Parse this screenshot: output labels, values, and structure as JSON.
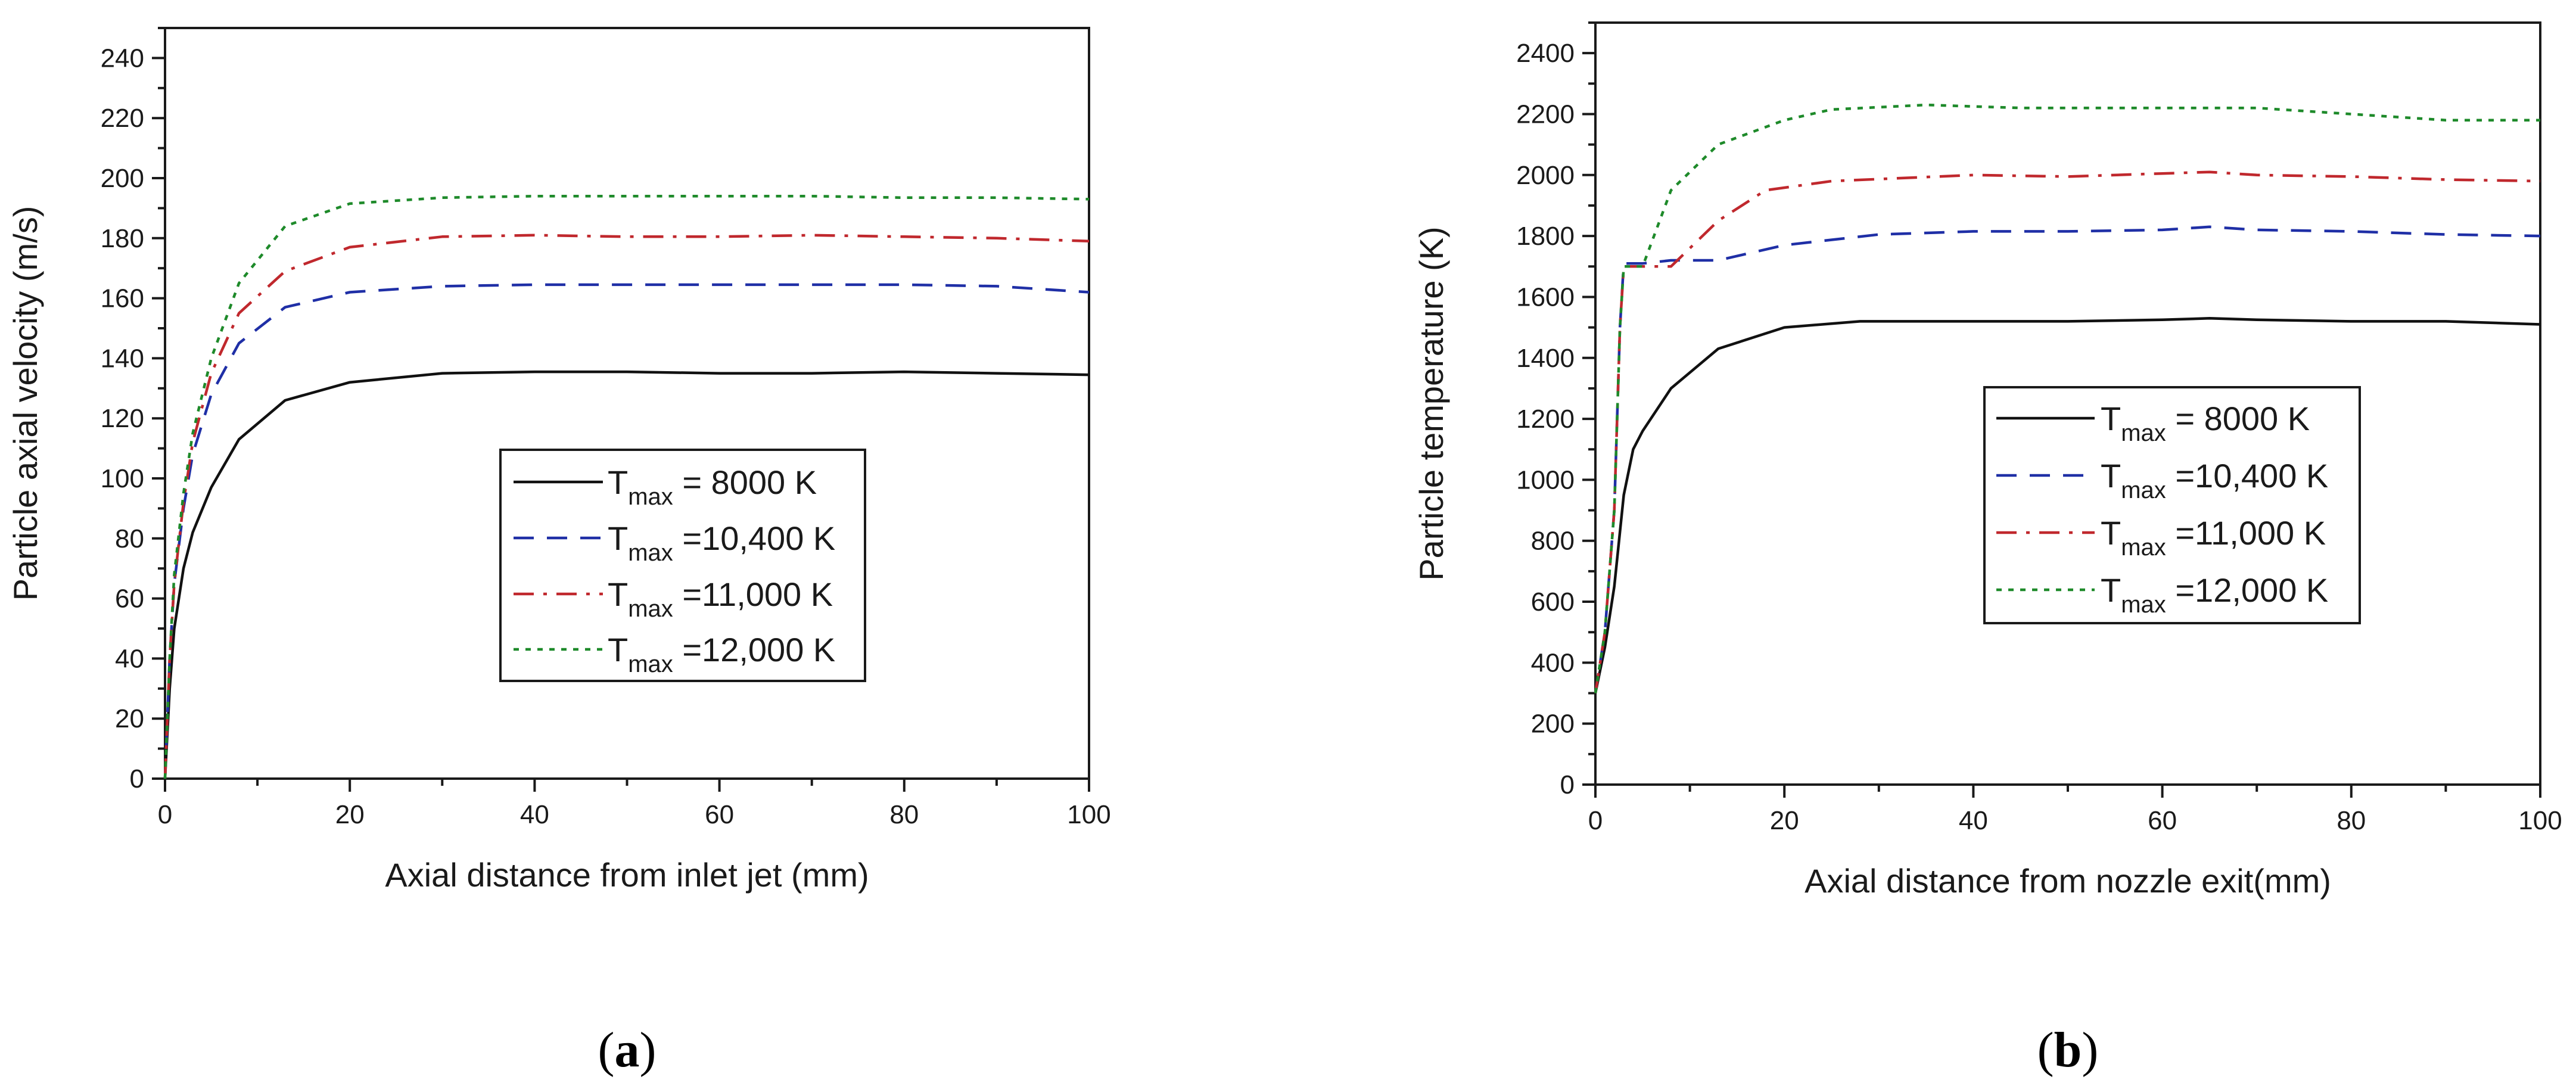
{
  "chart_data": [
    {
      "type": "line",
      "panel_label": "(a)",
      "panel_letter": "a",
      "xlabel": "Axial distance from inlet jet (mm)",
      "ylabel": "Particle axial velocity (m/s)",
      "xlim": [
        0,
        100
      ],
      "ylim": [
        0,
        250
      ],
      "xticks": [
        0,
        20,
        40,
        60,
        80,
        100
      ],
      "yticks": [
        0,
        20,
        40,
        60,
        80,
        100,
        120,
        140,
        160,
        180,
        200,
        220,
        240
      ],
      "legend_position": "center-right",
      "series": [
        {
          "name": "T_max = 8000 K",
          "legend_base": "T",
          "legend_sub": "max",
          "legend_rest": " = 8000 K",
          "color": "#111111",
          "style": "solid",
          "x": [
            0,
            0.5,
            1,
            2,
            3,
            5,
            8,
            13,
            20,
            30,
            40,
            50,
            60,
            70,
            80,
            90,
            100
          ],
          "y": [
            0,
            30,
            50,
            70,
            82,
            97,
            113,
            126,
            132,
            135,
            135.5,
            135.5,
            135,
            135,
            135.5,
            135,
            134.5
          ]
        },
        {
          "name": "T_max =10,400 K",
          "legend_base": "T",
          "legend_sub": "max",
          "legend_rest": " =10,400 K",
          "color": "#1f2fa6",
          "style": "dash",
          "x": [
            0,
            0.5,
            1,
            2,
            3,
            5,
            8,
            13,
            20,
            30,
            40,
            50,
            60,
            70,
            80,
            90,
            100
          ],
          "y": [
            0,
            40,
            65,
            90,
            108,
            128,
            145,
            157,
            162,
            164,
            164.5,
            164.5,
            164.5,
            164.5,
            164.5,
            164,
            162
          ]
        },
        {
          "name": "T_max =11,000 K",
          "legend_base": "T",
          "legend_sub": "max",
          "legend_rest": " =11,000 K",
          "color": "#c0282d",
          "style": "dashdot",
          "x": [
            0,
            0.5,
            1,
            2,
            3,
            5,
            8,
            13,
            20,
            30,
            40,
            50,
            60,
            70,
            80,
            90,
            100
          ],
          "y": [
            0,
            40,
            65,
            92,
            112,
            135,
            155,
            169,
            177,
            180.5,
            181,
            180.5,
            180.5,
            181,
            180.5,
            180,
            179
          ]
        },
        {
          "name": "T_max =12,000 K",
          "legend_base": "T",
          "legend_sub": "max",
          "legend_rest": " =12,000 K",
          "color": "#1e8a2a",
          "style": "dot",
          "x": [
            0,
            0.5,
            1,
            2,
            3,
            5,
            8,
            13,
            20,
            30,
            40,
            50,
            60,
            70,
            80,
            90,
            100
          ],
          "y": [
            0,
            40,
            68,
            95,
            115,
            140,
            165,
            184,
            191.5,
            193.5,
            194,
            194,
            194,
            194,
            193.5,
            193.5,
            193
          ]
        }
      ]
    },
    {
      "type": "line",
      "panel_label": "(b)",
      "panel_letter": "b",
      "xlabel": "Axial distance from nozzle exit(mm)",
      "ylabel": "Particle temperature (K)",
      "xlim": [
        0,
        100
      ],
      "ylim": [
        0,
        2500
      ],
      "xticks": [
        0,
        20,
        40,
        60,
        80,
        100
      ],
      "yticks": [
        0,
        200,
        400,
        600,
        800,
        1000,
        1200,
        1400,
        1600,
        1800,
        2000,
        2200,
        2400
      ],
      "legend_position": "center-right",
      "series": [
        {
          "name": "T_max = 8000 K",
          "legend_base": "T",
          "legend_sub": "max",
          "legend_rest": " = 8000 K",
          "color": "#111111",
          "style": "solid",
          "x": [
            0,
            1,
            2,
            3,
            4,
            5,
            8,
            13,
            20,
            28,
            40,
            50,
            60,
            65,
            70,
            80,
            90,
            100
          ],
          "y": [
            300,
            450,
            650,
            950,
            1100,
            1160,
            1300,
            1430,
            1500,
            1520,
            1520,
            1520,
            1525,
            1530,
            1525,
            1520,
            1520,
            1510
          ]
        },
        {
          "name": "T_max =10,400 K",
          "legend_base": "T",
          "legend_sub": "max",
          "legend_rest": " =10,400 K",
          "color": "#1f2fa6",
          "style": "dash",
          "x": [
            0,
            1,
            2,
            2.6,
            3,
            5,
            8,
            13,
            20,
            30,
            40,
            50,
            60,
            65,
            70,
            80,
            90,
            100
          ],
          "y": [
            300,
            500,
            900,
            1500,
            1710,
            1710,
            1720,
            1720,
            1770,
            1805,
            1815,
            1815,
            1820,
            1830,
            1820,
            1815,
            1805,
            1800
          ]
        },
        {
          "name": "T_max =11,000 K",
          "legend_base": "T",
          "legend_sub": "max",
          "legend_rest": " =11,000 K",
          "color": "#c0282d",
          "style": "dashdot",
          "x": [
            0,
            1,
            2,
            2.6,
            3,
            5,
            8,
            13,
            18,
            25,
            40,
            50,
            60,
            65,
            70,
            80,
            90,
            100
          ],
          "y": [
            300,
            500,
            900,
            1500,
            1700,
            1700,
            1700,
            1850,
            1950,
            1980,
            2000,
            1995,
            2005,
            2010,
            2000,
            1995,
            1985,
            1980
          ]
        },
        {
          "name": "T_max =12,000 K",
          "legend_base": "T",
          "legend_sub": "max",
          "legend_rest": " =12,000 K",
          "color": "#1e8a2a",
          "style": "dot",
          "x": [
            0,
            1,
            2,
            2.6,
            3,
            5,
            8,
            13,
            20,
            25,
            35,
            45,
            60,
            70,
            80,
            90,
            100
          ],
          "y": [
            300,
            500,
            900,
            1500,
            1700,
            1700,
            1950,
            2100,
            2180,
            2215,
            2230,
            2220,
            2220,
            2220,
            2200,
            2180,
            2180
          ]
        }
      ]
    }
  ]
}
